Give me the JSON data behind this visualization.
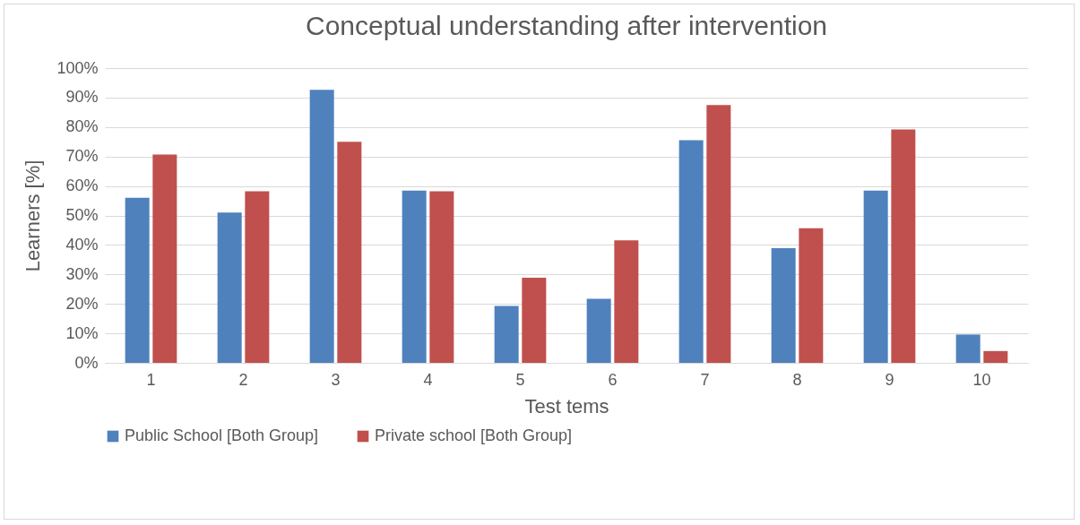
{
  "chart_data": {
    "type": "bar",
    "title": "Conceptual understanding after intervention",
    "xlabel": "Test tems",
    "ylabel": "Learners [%]",
    "categories": [
      "1",
      "2",
      "3",
      "4",
      "5",
      "6",
      "7",
      "8",
      "9",
      "10"
    ],
    "series": [
      {
        "name": "Public School [Both Group]",
        "color": "#4f81bd",
        "values": [
          56,
          51,
          92.6,
          58.4,
          19.3,
          21.7,
          75.5,
          38.9,
          58.4,
          9.6
        ]
      },
      {
        "name": "Private school [Both Group]",
        "color": "#c0504d",
        "values": [
          70.7,
          58.2,
          75,
          58.2,
          28.9,
          41.6,
          87.5,
          45.7,
          79.2,
          4
        ]
      }
    ],
    "ylim": [
      0,
      100
    ],
    "yticks": [
      {
        "value": 0,
        "label": "0%"
      },
      {
        "value": 10,
        "label": "10%"
      },
      {
        "value": 20,
        "label": "20%"
      },
      {
        "value": 30,
        "label": "30%"
      },
      {
        "value": 40,
        "label": "40%"
      },
      {
        "value": 50,
        "label": "50%"
      },
      {
        "value": 60,
        "label": "60%"
      },
      {
        "value": 70,
        "label": "70%"
      },
      {
        "value": 80,
        "label": "80%"
      },
      {
        "value": 90,
        "label": "90%"
      },
      {
        "value": 100,
        "label": "100%"
      }
    ],
    "grid": "y",
    "legend": "bottom"
  }
}
